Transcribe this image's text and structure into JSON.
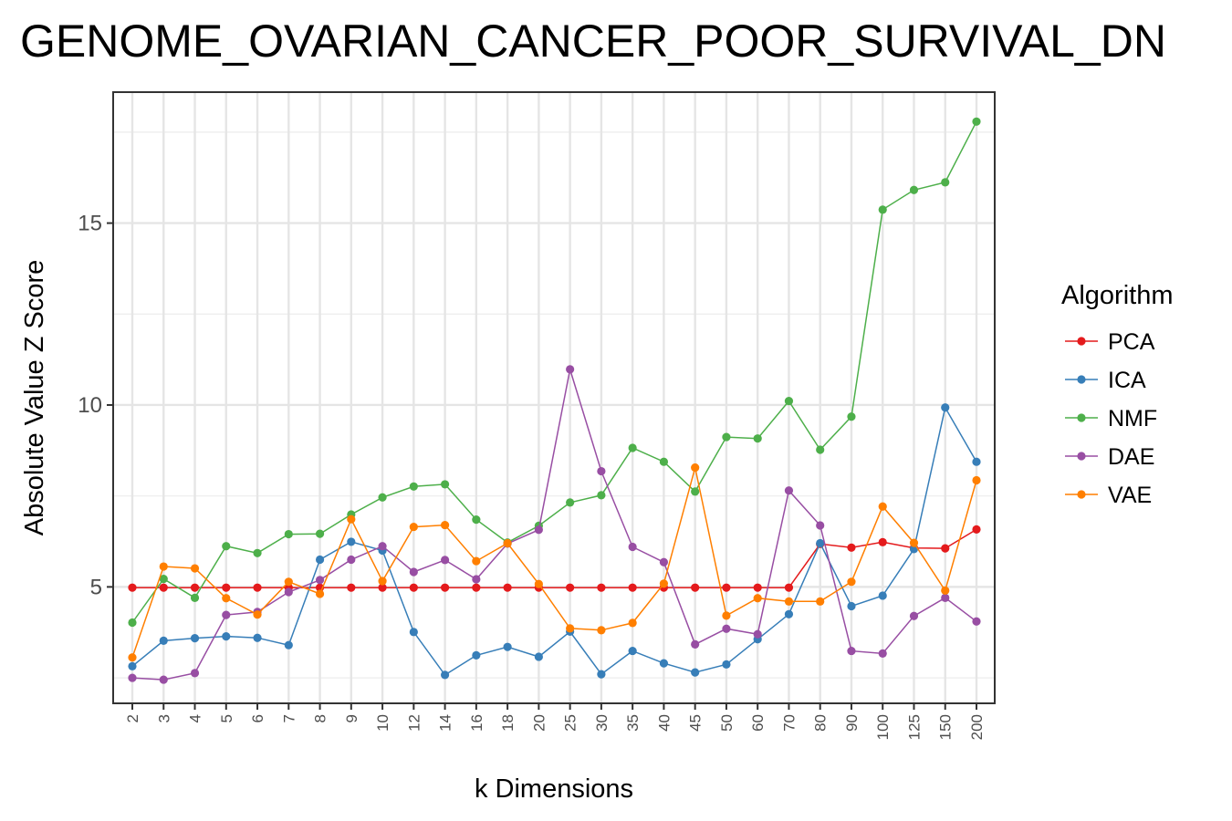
{
  "chart_data": {
    "type": "line",
    "title": "GENOME_OVARIAN_CANCER_POOR_SURVIVAL_DN",
    "xlabel": "k Dimensions",
    "ylabel": "Absolute Value Z Score",
    "categories": [
      "2",
      "3",
      "4",
      "5",
      "6",
      "7",
      "8",
      "9",
      "10",
      "12",
      "14",
      "16",
      "18",
      "20",
      "25",
      "30",
      "35",
      "40",
      "45",
      "50",
      "60",
      "70",
      "80",
      "90",
      "100",
      "125",
      "150",
      "200"
    ],
    "ylim": [
      1.8,
      18.6
    ],
    "yticks": [
      5,
      10,
      15
    ],
    "ytick_labels": [
      "5",
      "10",
      "15"
    ],
    "grid": true,
    "legend_position": "right",
    "legend_title": "Algorithm",
    "series": [
      {
        "name": "PCA",
        "color": "#e41a1c",
        "values": [
          4.98,
          4.98,
          4.98,
          4.98,
          4.98,
          4.98,
          4.98,
          4.98,
          4.98,
          4.98,
          4.98,
          4.98,
          4.98,
          4.98,
          4.98,
          4.98,
          4.98,
          4.98,
          4.98,
          4.98,
          4.98,
          4.98,
          6.18,
          6.08,
          6.23,
          6.07,
          6.06,
          6.58
        ]
      },
      {
        "name": "ICA",
        "color": "#377eb8",
        "values": [
          2.82,
          3.52,
          3.59,
          3.64,
          3.6,
          3.4,
          5.75,
          6.24,
          6.0,
          3.76,
          2.58,
          3.12,
          3.35,
          3.08,
          3.77,
          2.6,
          3.24,
          2.9,
          2.65,
          2.87,
          3.56,
          4.25,
          6.2,
          4.47,
          4.76,
          6.04,
          9.93,
          8.44
        ]
      },
      {
        "name": "NMF",
        "color": "#4daf4a",
        "values": [
          4.02,
          5.22,
          4.7,
          6.12,
          5.93,
          6.45,
          6.46,
          6.99,
          7.46,
          7.76,
          7.82,
          6.85,
          6.22,
          6.68,
          7.32,
          7.52,
          8.82,
          8.44,
          7.62,
          9.12,
          9.08,
          10.11,
          8.77,
          9.68,
          15.37,
          15.91,
          16.12,
          17.79
        ]
      },
      {
        "name": "DAE",
        "color": "#984ea3",
        "values": [
          2.5,
          2.45,
          2.63,
          4.23,
          4.31,
          4.86,
          5.19,
          5.75,
          6.12,
          5.41,
          5.74,
          5.21,
          6.19,
          6.57,
          10.98,
          8.18,
          6.1,
          5.68,
          3.42,
          3.85,
          3.7,
          7.65,
          6.69,
          3.24,
          3.17,
          4.2,
          4.7,
          4.05
        ]
      },
      {
        "name": "VAE",
        "color": "#ff7f00",
        "values": [
          3.06,
          5.56,
          5.51,
          4.69,
          4.24,
          5.14,
          4.81,
          6.86,
          5.16,
          6.65,
          6.7,
          5.71,
          6.2,
          5.08,
          3.86,
          3.81,
          4.01,
          5.09,
          8.28,
          4.21,
          4.69,
          4.6,
          4.6,
          5.14,
          7.21,
          6.21,
          4.9,
          7.93
        ]
      }
    ]
  }
}
